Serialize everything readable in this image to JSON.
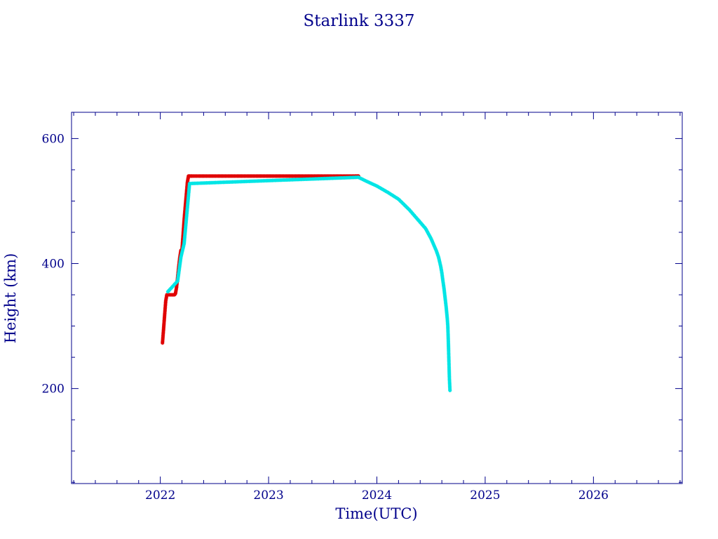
{
  "chart_data": {
    "type": "scatter",
    "title": "Starlink 3337",
    "xlabel": "Time(UTC)",
    "ylabel": "Height (km)",
    "xlim": [
      2021.18,
      2026.82
    ],
    "ylim": [
      48,
      642
    ],
    "x_major_ticks": [
      2022,
      2023,
      2024,
      2025,
      2026
    ],
    "x_tick_labels": [
      "2022",
      "2023",
      "2024",
      "2025",
      "2026"
    ],
    "y_major_ticks": [
      200,
      400,
      600
    ],
    "y_tick_labels": [
      "200",
      "400",
      "600"
    ],
    "grid": false,
    "legend": "none",
    "colors": {
      "axis": "#00008b",
      "series_early": "#e00000",
      "series_late": "#00e5e5"
    },
    "series": [
      {
        "color": "#e00000",
        "x": [
          2022.02,
          2022.03,
          2022.04,
          2022.05,
          2022.06,
          2022.08,
          2022.1,
          2022.13,
          2022.14,
          2022.15,
          2022.16,
          2022.17,
          2022.18,
          2022.19,
          2022.2,
          2022.21,
          2022.22,
          2022.23,
          2022.24,
          2022.25,
          2022.26,
          2022.27,
          2022.28,
          2022.29,
          2022.3,
          2022.4,
          2022.5,
          2022.6,
          2022.7,
          2022.8,
          2022.9,
          2023.0,
          2023.1,
          2023.2,
          2023.3,
          2023.4,
          2023.5,
          2023.6,
          2023.7,
          2023.8,
          2023.83
        ],
        "y": [
          273,
          295,
          318,
          340,
          350,
          350,
          350,
          350,
          352,
          362,
          378,
          395,
          410,
          421,
          422,
          445,
          470,
          490,
          510,
          530,
          540,
          540,
          540,
          540,
          540,
          540,
          540,
          540,
          540,
          540,
          540,
          540,
          540,
          540,
          540,
          540,
          540,
          540,
          540,
          540,
          540
        ]
      },
      {
        "color": "#00e5e5",
        "x": [
          2022.07,
          2022.16,
          2022.19,
          2022.22,
          2022.27,
          2023.83,
          2023.9,
          2024.0,
          2024.1,
          2024.2,
          2024.3,
          2024.4,
          2024.45,
          2024.5,
          2024.55,
          2024.57,
          2024.59,
          2024.6,
          2024.61,
          2024.62,
          2024.63,
          2024.64,
          2024.65,
          2024.655,
          2024.66,
          2024.665,
          2024.67,
          2024.675
        ],
        "y": [
          355,
          372,
          410,
          432,
          528,
          538,
          532,
          524,
          514,
          503,
          486,
          466,
          456,
          440,
          420,
          410,
          395,
          385,
          372,
          360,
          345,
          330,
          312,
          300,
          275,
          245,
          215,
          197
        ]
      }
    ]
  }
}
